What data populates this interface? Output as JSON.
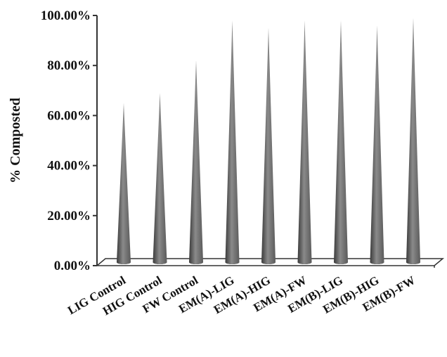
{
  "chart_data": {
    "type": "bar",
    "bar_shape": "cone",
    "categories": [
      "LIG Control",
      "HIG Control",
      "FW Control",
      "EM(A)-LIG",
      "EM(A)-HIG",
      "EM(A)-FW",
      "EM(B)-LIG",
      "EM(B)-HIG",
      "EM(B)-FW"
    ],
    "values": [
      65,
      69,
      82,
      98,
      95,
      98,
      98,
      96,
      99
    ],
    "ylabel": "% Composted",
    "ylim": [
      0,
      100
    ],
    "yticks": [
      0,
      20,
      40,
      60,
      80,
      100
    ],
    "ytick_labels": [
      "0.00%",
      "20.00%",
      "40.00%",
      "60.00%",
      "80.00%",
      "100.00%"
    ],
    "grid": false,
    "colors": {
      "bar": "#707070",
      "bar_dark": "#3a3a3a",
      "bar_light": "#9a9a9a",
      "axis": "#333333"
    }
  }
}
